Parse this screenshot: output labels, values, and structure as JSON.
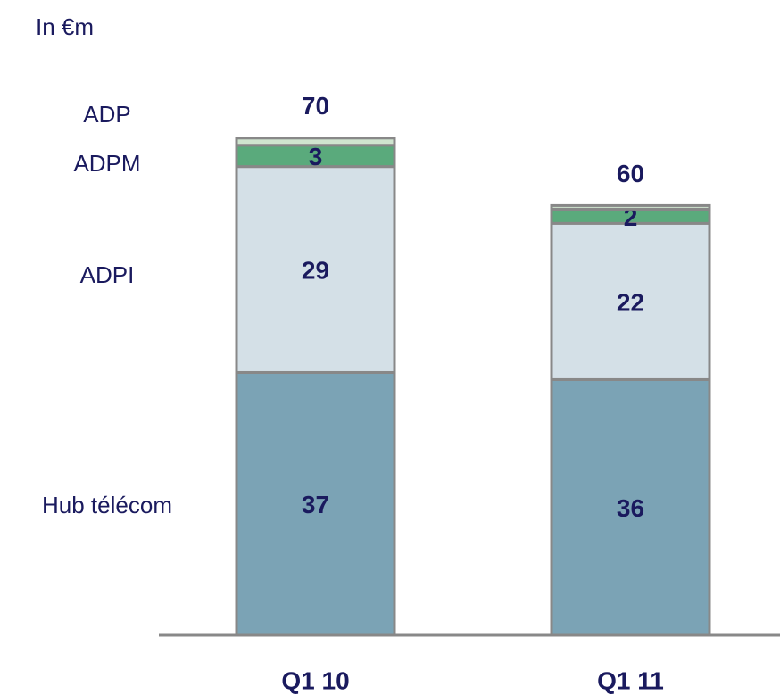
{
  "chart_data": {
    "type": "stacked_bar",
    "title": "In €m",
    "categories": [
      "Q1 10",
      "Q1 11"
    ],
    "totals": [
      70,
      60
    ],
    "series": [
      {
        "name": "Hub télécom",
        "color": "#7ba3b5",
        "values": [
          37,
          36
        ]
      },
      {
        "name": "ADPI",
        "color": "#d4e0e7",
        "values": [
          29,
          22
        ]
      },
      {
        "name": "ADPM",
        "color": "#5aaa7c",
        "values": [
          3,
          2
        ]
      },
      {
        "name": "ADP",
        "color": "#cfe5cf",
        "values": [
          1,
          0.5
        ],
        "show_values": false
      }
    ]
  }
}
